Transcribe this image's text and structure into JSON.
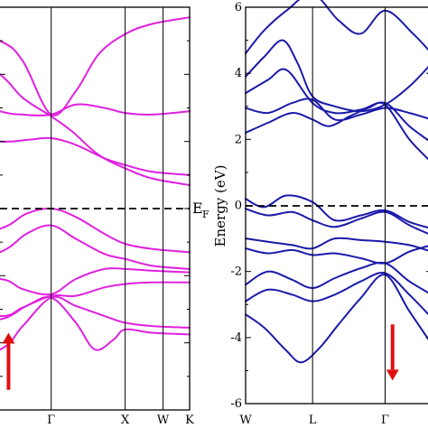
{
  "chart_data": [
    {
      "type": "line",
      "title": "",
      "xlabel": "",
      "ylabel": "",
      "kpoints": [
        {
          "label": "Γ",
          "pos": 0.27
        },
        {
          "label": "X",
          "pos": 0.66
        },
        {
          "label": "W",
          "pos": 0.86
        },
        {
          "label": "K",
          "pos": 1.0
        }
      ],
      "ylim": [
        -6,
        6
      ],
      "fermi_label": "E",
      "fermi_label_sub": "F",
      "color": "#e020e0",
      "arrow": {
        "direction": "up",
        "x": 0.045,
        "y_from": -5.4,
        "y_to": -3.7,
        "color": "#e01010"
      },
      "series": [
        {
          "values": [
            [
              -0.3,
              5.6
            ],
            [
              0.0,
              5.0
            ],
            [
              0.12,
              4.4
            ],
            [
              0.27,
              2.8
            ],
            [
              0.4,
              3.5
            ],
            [
              0.52,
              4.6
            ],
            [
              0.66,
              5.2
            ],
            [
              0.8,
              5.5
            ],
            [
              1.0,
              5.7
            ]
          ]
        },
        {
          "values": [
            [
              -0.3,
              3.4
            ],
            [
              0.0,
              2.9
            ],
            [
              0.12,
              2.8
            ],
            [
              0.27,
              2.8
            ],
            [
              0.4,
              3.1
            ],
            [
              0.55,
              3.0
            ],
            [
              0.66,
              2.85
            ],
            [
              0.8,
              2.8
            ],
            [
              1.0,
              2.9
            ]
          ]
        },
        {
          "values": [
            [
              -0.3,
              2.2
            ],
            [
              0.0,
              2.0
            ],
            [
              0.15,
              2.05
            ],
            [
              0.27,
              2.1
            ],
            [
              0.4,
              1.9
            ],
            [
              0.55,
              1.5
            ],
            [
              0.66,
              1.3
            ],
            [
              0.8,
              1.1
            ],
            [
              1.0,
              1.0
            ]
          ]
        },
        {
          "values": [
            [
              -0.3,
              5.2
            ],
            [
              0.0,
              4.0
            ],
            [
              0.12,
              3.3
            ],
            [
              0.27,
              2.75
            ],
            [
              0.38,
              2.3
            ],
            [
              0.52,
              1.6
            ],
            [
              0.66,
              1.2
            ],
            [
              0.8,
              0.9
            ],
            [
              1.0,
              0.7
            ]
          ]
        },
        {
          "values": [
            [
              -0.3,
              -0.9
            ],
            [
              0.0,
              -0.6
            ],
            [
              0.14,
              -0.15
            ],
            [
              0.27,
              0.0
            ],
            [
              0.4,
              -0.25
            ],
            [
              0.55,
              -0.75
            ],
            [
              0.66,
              -1.05
            ],
            [
              0.8,
              -1.2
            ],
            [
              1.0,
              -1.3
            ]
          ]
        },
        {
          "values": [
            [
              -0.3,
              -1.7
            ],
            [
              0.0,
              -1.3
            ],
            [
              0.14,
              -0.75
            ],
            [
              0.27,
              -0.5
            ],
            [
              0.4,
              -0.9
            ],
            [
              0.55,
              -1.35
            ],
            [
              0.66,
              -1.5
            ],
            [
              0.8,
              -1.7
            ],
            [
              1.0,
              -1.8
            ]
          ]
        },
        {
          "values": [
            [
              -0.3,
              -2.2
            ],
            [
              0.0,
              -2.1
            ],
            [
              0.12,
              -2.4
            ],
            [
              0.27,
              -2.55
            ],
            [
              0.4,
              -2.1
            ],
            [
              0.55,
              -1.8
            ],
            [
              0.66,
              -1.8
            ],
            [
              0.8,
              -1.85
            ],
            [
              1.0,
              -1.9
            ]
          ]
        },
        {
          "values": [
            [
              -0.3,
              -2.8
            ],
            [
              0.0,
              -3.2
            ],
            [
              0.12,
              -2.95
            ],
            [
              0.27,
              -2.6
            ],
            [
              0.4,
              -2.6
            ],
            [
              0.55,
              -2.35
            ],
            [
              0.66,
              -2.25
            ],
            [
              0.8,
              -2.2
            ],
            [
              1.0,
              -2.2
            ]
          ]
        },
        {
          "values": [
            [
              -0.3,
              -4.6
            ],
            [
              0.0,
              -4.2
            ],
            [
              0.12,
              -3.5
            ],
            [
              0.27,
              -2.65
            ],
            [
              0.4,
              -2.9
            ],
            [
              0.55,
              -3.2
            ],
            [
              0.66,
              -3.4
            ],
            [
              0.8,
              -3.5
            ],
            [
              1.0,
              -3.55
            ]
          ]
        },
        {
          "values": [
            [
              -0.3,
              -3.4
            ],
            [
              0.0,
              -3.3
            ],
            [
              0.14,
              -2.9
            ],
            [
              0.27,
              -2.65
            ],
            [
              0.4,
              -3.4
            ],
            [
              0.5,
              -4.2
            ],
            [
              0.6,
              -3.9
            ],
            [
              0.66,
              -3.6
            ],
            [
              0.8,
              -3.7
            ],
            [
              1.0,
              -3.75
            ]
          ]
        }
      ]
    },
    {
      "type": "line",
      "title": "",
      "xlabel": "",
      "ylabel": "Energy (eV)",
      "kpoints": [
        {
          "label": "W",
          "pos": 0.0
        },
        {
          "label": "L",
          "pos": 0.36
        },
        {
          "label": "Γ",
          "pos": 0.75
        }
      ],
      "yticks": [
        -6,
        -4,
        -2,
        0,
        2,
        4,
        6
      ],
      "ylim": [
        -6,
        6
      ],
      "color": "#1a1aaa",
      "arrow": {
        "direction": "down",
        "x": 0.79,
        "y_from": -3.6,
        "y_to": -5.3,
        "color": "#e01010"
      },
      "series": [
        {
          "values": [
            [
              0.0,
              4.6
            ],
            [
              0.1,
              5.3
            ],
            [
              0.22,
              5.9
            ],
            [
              0.36,
              6.4
            ],
            [
              0.5,
              5.6
            ],
            [
              0.62,
              5.2
            ],
            [
              0.75,
              5.9
            ],
            [
              0.9,
              5.2
            ],
            [
              1.0,
              4.6
            ]
          ]
        },
        {
          "values": [
            [
              0.0,
              3.9
            ],
            [
              0.1,
              4.5
            ],
            [
              0.2,
              5.0
            ],
            [
              0.28,
              4.3
            ],
            [
              0.36,
              3.3
            ],
            [
              0.48,
              3.0
            ],
            [
              0.62,
              2.85
            ],
            [
              0.75,
              3.05
            ],
            [
              0.88,
              3.6
            ],
            [
              1.0,
              4.3
            ]
          ]
        },
        {
          "values": [
            [
              0.0,
              3.4
            ],
            [
              0.12,
              3.8
            ],
            [
              0.22,
              4.1
            ],
            [
              0.36,
              3.1
            ],
            [
              0.48,
              2.8
            ],
            [
              0.62,
              2.9
            ],
            [
              0.75,
              3.1
            ],
            [
              0.88,
              2.4
            ],
            [
              1.0,
              1.9
            ]
          ]
        },
        {
          "values": [
            [
              0.0,
              2.95
            ],
            [
              0.12,
              2.8
            ],
            [
              0.25,
              3.1
            ],
            [
              0.36,
              3.2
            ],
            [
              0.48,
              2.6
            ],
            [
              0.62,
              2.75
            ],
            [
              0.75,
              2.95
            ],
            [
              0.88,
              2.8
            ],
            [
              1.0,
              2.6
            ]
          ]
        },
        {
          "values": [
            [
              0.0,
              2.2
            ],
            [
              0.12,
              2.5
            ],
            [
              0.25,
              2.8
            ],
            [
              0.36,
              2.6
            ],
            [
              0.45,
              2.4
            ],
            [
              0.56,
              2.7
            ],
            [
              0.66,
              2.95
            ],
            [
              0.75,
              3.05
            ],
            [
              0.88,
              2.0
            ],
            [
              1.0,
              1.3
            ]
          ]
        },
        {
          "values": [
            [
              0.0,
              0.2
            ],
            [
              0.1,
              -0.05
            ],
            [
              0.22,
              0.3
            ],
            [
              0.36,
              0.1
            ],
            [
              0.48,
              -0.45
            ],
            [
              0.62,
              -0.3
            ],
            [
              0.75,
              -0.15
            ],
            [
              0.88,
              -0.5
            ],
            [
              1.0,
              -0.7
            ]
          ]
        },
        {
          "values": [
            [
              0.0,
              -0.1
            ],
            [
              0.12,
              -0.3
            ],
            [
              0.25,
              -0.2
            ],
            [
              0.36,
              -0.45
            ],
            [
              0.48,
              -0.65
            ],
            [
              0.62,
              -0.4
            ],
            [
              0.75,
              -0.2
            ],
            [
              0.88,
              -0.6
            ],
            [
              1.0,
              -0.9
            ]
          ]
        },
        {
          "values": [
            [
              0.0,
              -1.0
            ],
            [
              0.12,
              -1.1
            ],
            [
              0.25,
              -1.2
            ],
            [
              0.36,
              -1.3
            ],
            [
              0.48,
              -1.0
            ],
            [
              0.62,
              -1.05
            ],
            [
              0.75,
              -1.1
            ],
            [
              0.88,
              -1.2
            ],
            [
              1.0,
              -1.4
            ]
          ]
        },
        {
          "values": [
            [
              0.0,
              -1.3
            ],
            [
              0.12,
              -1.45
            ],
            [
              0.25,
              -1.35
            ],
            [
              0.36,
              -1.5
            ],
            [
              0.48,
              -1.45
            ],
            [
              0.62,
              -1.6
            ],
            [
              0.75,
              -1.75
            ],
            [
              0.88,
              -1.4
            ],
            [
              1.0,
              -1.2
            ]
          ]
        },
        {
          "values": [
            [
              0.0,
              -2.4
            ],
            [
              0.12,
              -2.0
            ],
            [
              0.25,
              -2.25
            ],
            [
              0.36,
              -2.5
            ],
            [
              0.48,
              -2.2
            ],
            [
              0.62,
              -1.9
            ],
            [
              0.75,
              -1.75
            ],
            [
              0.88,
              -2.3
            ],
            [
              1.0,
              -2.7
            ]
          ]
        },
        {
          "values": [
            [
              0.0,
              -2.9
            ],
            [
              0.12,
              -2.55
            ],
            [
              0.25,
              -2.7
            ],
            [
              0.36,
              -2.9
            ],
            [
              0.48,
              -2.7
            ],
            [
              0.62,
              -2.3
            ],
            [
              0.75,
              -2.05
            ],
            [
              0.88,
              -2.7
            ],
            [
              1.0,
              -3.4
            ]
          ]
        },
        {
          "values": [
            [
              0.0,
              -3.3
            ],
            [
              0.1,
              -3.7
            ],
            [
              0.22,
              -4.4
            ],
            [
              0.3,
              -4.75
            ],
            [
              0.4,
              -4.3
            ],
            [
              0.5,
              -3.6
            ],
            [
              0.62,
              -2.8
            ],
            [
              0.75,
              -2.1
            ],
            [
              0.88,
              -3.2
            ],
            [
              1.0,
              -4.2
            ]
          ]
        }
      ]
    }
  ]
}
